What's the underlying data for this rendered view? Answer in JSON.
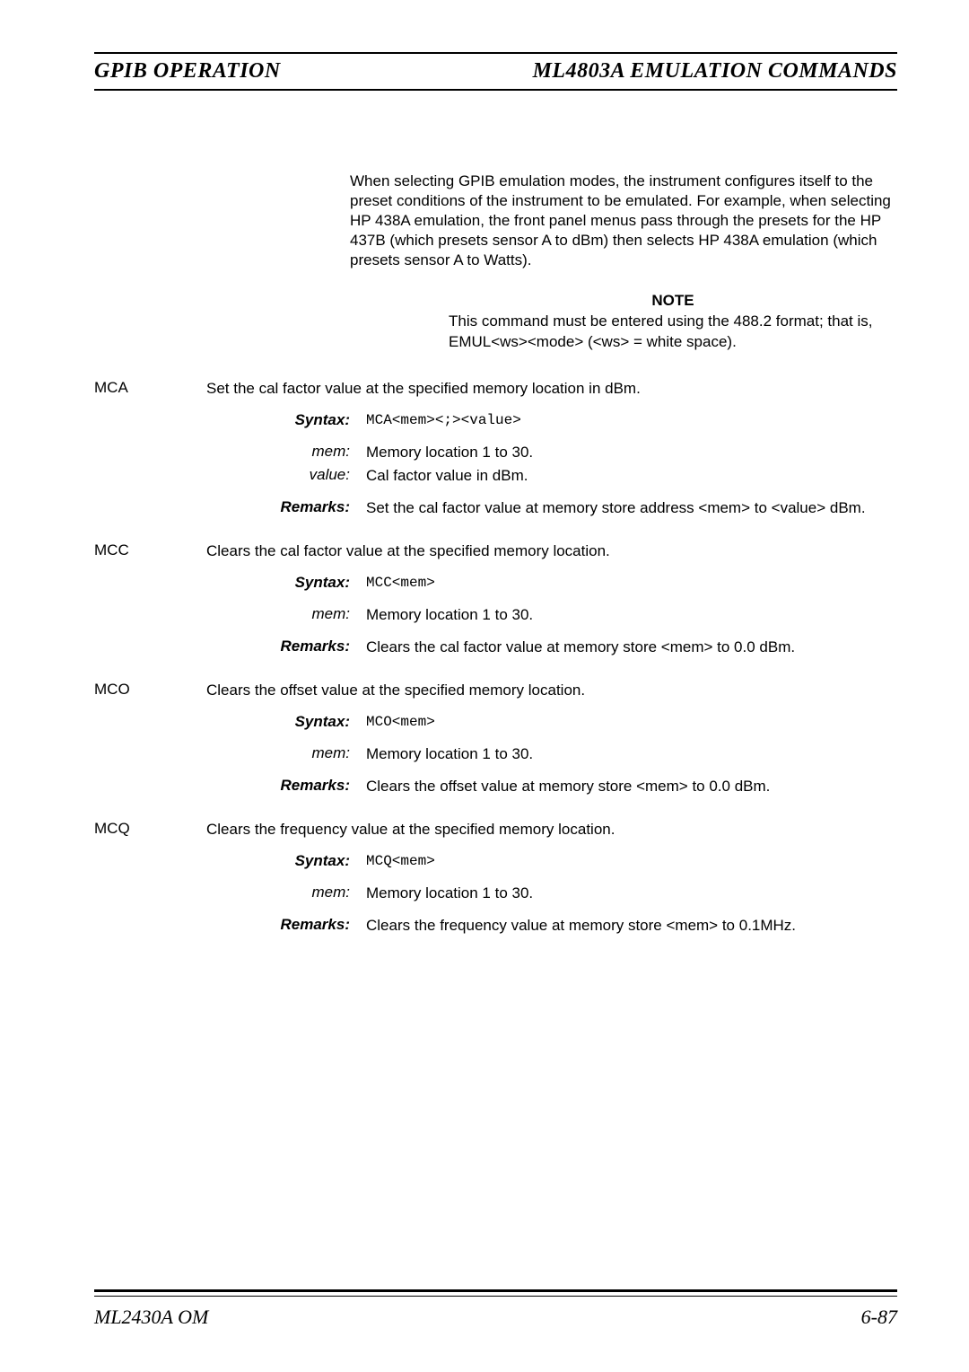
{
  "header": {
    "left": "GPIB OPERATION",
    "right": "ML4803A EMULATION COMMANDS"
  },
  "intro": "When selecting GPIB emulation modes, the instrument configures itself to the preset conditions of the instrument to be emulated. For example, when selecting HP 438A emulation, the front panel menus pass through the presets for the HP 437B (which presets sensor A to dBm) then selects HP 438A emulation (which presets sensor A to Watts).",
  "note": {
    "title": "NOTE",
    "body": "This command must be entered using the 488.2 format; that is, EMUL<ws><mode> (<ws> = white space)."
  },
  "commands": [
    {
      "name": "MCA",
      "desc": "Set the cal factor value at the specified memory location in dBm.",
      "syntax": "MCA<mem><;><value>",
      "params": [
        {
          "label": "mem:",
          "text": "Memory location 1 to 30."
        },
        {
          "label": "value:",
          "text": "Cal factor value in dBm."
        }
      ],
      "remarks": "Set the cal factor value at memory store address <mem> to <value> dBm."
    },
    {
      "name": "MCC",
      "desc": "Clears the cal factor value at the specified memory location.",
      "syntax": "MCC<mem>",
      "params": [
        {
          "label": "mem:",
          "text": "Memory location 1 to 30."
        }
      ],
      "remarks": "Clears the cal factor value at memory store <mem> to 0.0 dBm."
    },
    {
      "name": "MCO",
      "desc": "Clears the offset value at the specified memory location.",
      "syntax": "MCO<mem>",
      "params": [
        {
          "label": "mem:",
          "text": "Memory location 1 to 30."
        }
      ],
      "remarks": "Clears the offset value at memory store <mem> to 0.0 dBm."
    },
    {
      "name": "MCQ",
      "desc": "Clears the frequency value at the specified memory location.",
      "syntax": "MCQ<mem>",
      "params": [
        {
          "label": "mem:",
          "text": "Memory location 1 to 30."
        }
      ],
      "remarks": "Clears the frequency value at memory store <mem> to 0.1MHz."
    }
  ],
  "labels": {
    "syntax": "Syntax:",
    "remarks": "Remarks:"
  },
  "footer": {
    "left": "ML2430A OM",
    "right": "6-87"
  }
}
